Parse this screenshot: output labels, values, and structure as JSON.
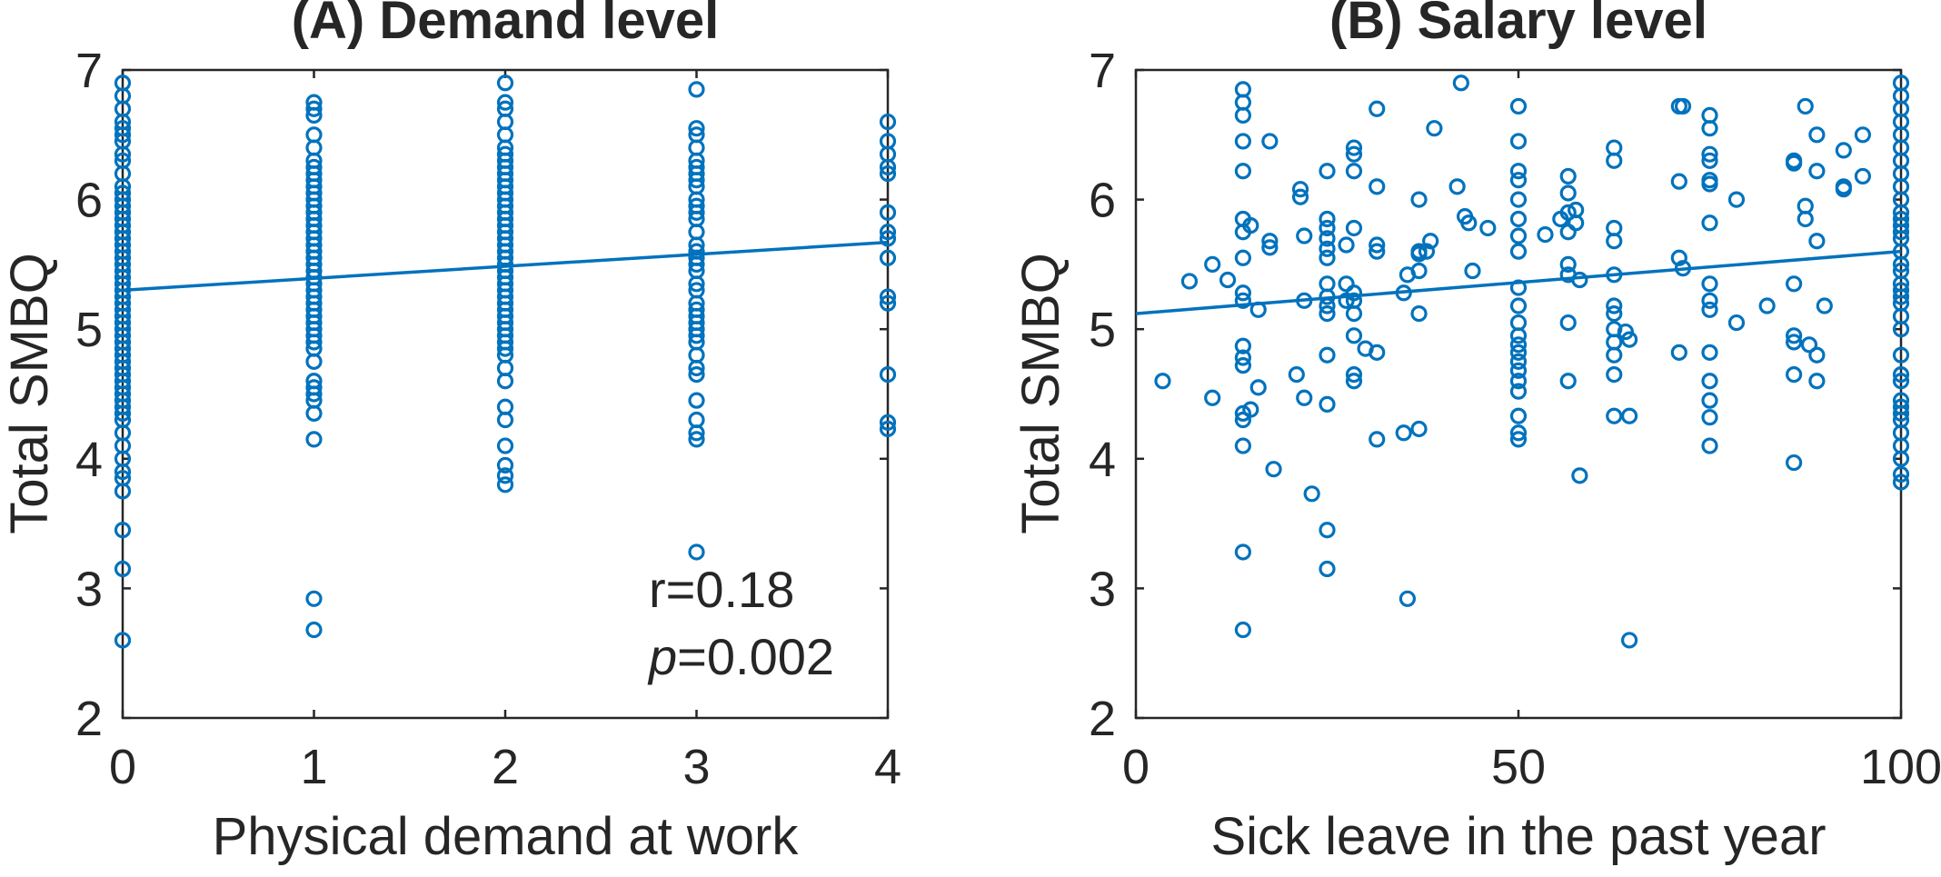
{
  "colors": {
    "marker": "#0072BD",
    "axis": "#262626",
    "background": "#ffffff"
  },
  "chart_data": [
    {
      "type": "scatter",
      "title": "(A) Demand level",
      "xlabel": "Physical demand at work",
      "ylabel": "Total SMBQ",
      "xlim": [
        0,
        4
      ],
      "ylim": [
        2,
        7
      ],
      "xticks": [
        0,
        1,
        2,
        3,
        4
      ],
      "xtick_labels": [
        "0",
        "1",
        "2",
        "3",
        "4"
      ],
      "yticks": [
        2,
        3,
        4,
        5,
        6,
        7
      ],
      "ytick_labels": [
        "2",
        "3",
        "4",
        "5",
        "6",
        "7"
      ],
      "grid": false,
      "annotation": {
        "r_text": "r=0.18",
        "p_italic": "p",
        "p_rest": "=0.002"
      },
      "fit_line": {
        "x": [
          0,
          4
        ],
        "y": [
          5.3,
          5.67
        ]
      },
      "series": [
        {
          "name": "x=0",
          "x": 0,
          "y": [
            6.9,
            6.8,
            6.7,
            6.6,
            6.55,
            6.5,
            6.45,
            6.35,
            6.3,
            6.2,
            6.1,
            6.05,
            6.0,
            5.95,
            5.9,
            5.85,
            5.8,
            5.75,
            5.7,
            5.65,
            5.6,
            5.55,
            5.5,
            5.45,
            5.4,
            5.35,
            5.3,
            5.25,
            5.2,
            5.15,
            5.1,
            5.05,
            5.0,
            4.95,
            4.9,
            4.85,
            4.8,
            4.75,
            4.7,
            4.65,
            4.6,
            4.55,
            4.5,
            4.45,
            4.4,
            4.35,
            4.3,
            4.2,
            4.1,
            4.0,
            3.9,
            3.85,
            3.75,
            3.45,
            3.15,
            2.6
          ]
        },
        {
          "name": "x=1",
          "x": 1,
          "y": [
            6.75,
            6.7,
            6.65,
            6.5,
            6.4,
            6.3,
            6.25,
            6.2,
            6.15,
            6.1,
            6.05,
            6.0,
            5.95,
            5.9,
            5.85,
            5.8,
            5.75,
            5.7,
            5.65,
            5.6,
            5.55,
            5.5,
            5.45,
            5.4,
            5.35,
            5.3,
            5.25,
            5.2,
            5.15,
            5.1,
            5.05,
            5.0,
            4.95,
            4.9,
            4.85,
            4.75,
            4.6,
            4.55,
            4.5,
            4.45,
            4.35,
            4.15,
            2.92,
            2.68
          ]
        },
        {
          "name": "x=2",
          "x": 2,
          "y": [
            6.9,
            6.75,
            6.7,
            6.6,
            6.5,
            6.4,
            6.35,
            6.3,
            6.25,
            6.2,
            6.15,
            6.1,
            6.05,
            6.0,
            5.95,
            5.9,
            5.85,
            5.8,
            5.75,
            5.7,
            5.65,
            5.6,
            5.55,
            5.5,
            5.45,
            5.4,
            5.35,
            5.3,
            5.25,
            5.2,
            5.15,
            5.1,
            5.05,
            5.0,
            4.95,
            4.9,
            4.85,
            4.8,
            4.7,
            4.6,
            4.4,
            4.3,
            4.1,
            3.95,
            3.87,
            3.8
          ]
        },
        {
          "name": "x=3",
          "x": 3,
          "y": [
            6.85,
            6.55,
            6.5,
            6.4,
            6.3,
            6.25,
            6.2,
            6.15,
            6.1,
            6.0,
            5.95,
            5.9,
            5.85,
            5.75,
            5.65,
            5.6,
            5.55,
            5.5,
            5.45,
            5.35,
            5.3,
            5.2,
            5.15,
            5.1,
            5.05,
            5.0,
            4.95,
            4.9,
            4.8,
            4.7,
            4.65,
            4.45,
            4.3,
            4.2,
            4.15,
            3.28
          ]
        },
        {
          "name": "x=4",
          "x": 4,
          "y": [
            6.6,
            6.45,
            6.35,
            6.25,
            6.2,
            5.9,
            5.75,
            5.7,
            5.55,
            5.25,
            5.2,
            4.65,
            4.28,
            4.23
          ]
        }
      ]
    },
    {
      "type": "scatter",
      "title": "(B) Salary level",
      "xlabel": "Sick leave in the past year",
      "ylabel": "Total SMBQ",
      "xlim": [
        0,
        100
      ],
      "ylim": [
        2,
        7
      ],
      "xticks": [
        0,
        50,
        100
      ],
      "xtick_labels": [
        "0",
        "50",
        "100"
      ],
      "yticks": [
        2,
        3,
        4,
        5,
        6,
        7
      ],
      "ytick_labels": [
        "2",
        "3",
        "4",
        "5",
        "6",
        "7"
      ],
      "grid": false,
      "fit_line": {
        "x": [
          0,
          100
        ],
        "y": [
          5.12,
          5.6
        ]
      },
      "points": [
        [
          3.5,
          4.6
        ],
        [
          7,
          5.37
        ],
        [
          10,
          5.5
        ],
        [
          10,
          4.47
        ],
        [
          12,
          5.38
        ],
        [
          14,
          6.85
        ],
        [
          14,
          6.75
        ],
        [
          14,
          6.65
        ],
        [
          14,
          6.45
        ],
        [
          14,
          6.22
        ],
        [
          14,
          5.85
        ],
        [
          14,
          5.75
        ],
        [
          14,
          5.55
        ],
        [
          14,
          5.28
        ],
        [
          14,
          5.22
        ],
        [
          14,
          4.87
        ],
        [
          14,
          4.78
        ],
        [
          14,
          4.72
        ],
        [
          14,
          4.35
        ],
        [
          14,
          4.3
        ],
        [
          14,
          4.1
        ],
        [
          14,
          3.28
        ],
        [
          14,
          2.68
        ],
        [
          15,
          5.8
        ],
        [
          15,
          4.38
        ],
        [
          16,
          5.15
        ],
        [
          16,
          4.55
        ],
        [
          17.5,
          6.45
        ],
        [
          17.5,
          5.68
        ],
        [
          17.5,
          5.63
        ],
        [
          18,
          3.92
        ],
        [
          21,
          4.65
        ],
        [
          21.5,
          6.08
        ],
        [
          21.5,
          6.02
        ],
        [
          22,
          5.72
        ],
        [
          22,
          5.22
        ],
        [
          22,
          4.47
        ],
        [
          23,
          3.73
        ],
        [
          25,
          6.22
        ],
        [
          25,
          5.85
        ],
        [
          25,
          5.78
        ],
        [
          25,
          5.7
        ],
        [
          25,
          5.62
        ],
        [
          25,
          5.55
        ],
        [
          25,
          5.35
        ],
        [
          25,
          5.25
        ],
        [
          25,
          5.18
        ],
        [
          25,
          5.12
        ],
        [
          25,
          4.8
        ],
        [
          25,
          4.42
        ],
        [
          25,
          3.45
        ],
        [
          25,
          3.15
        ],
        [
          27.5,
          5.65
        ],
        [
          27.5,
          5.35
        ],
        [
          27.5,
          5.22
        ],
        [
          28.5,
          6.4
        ],
        [
          28.5,
          6.35
        ],
        [
          28.5,
          6.22
        ],
        [
          28.5,
          5.78
        ],
        [
          28.5,
          5.28
        ],
        [
          28.5,
          5.22
        ],
        [
          28.5,
          5.12
        ],
        [
          28.5,
          4.95
        ],
        [
          28.5,
          4.65
        ],
        [
          28.5,
          4.6
        ],
        [
          30,
          4.85
        ],
        [
          31.5,
          6.7
        ],
        [
          31.5,
          6.1
        ],
        [
          31.5,
          5.65
        ],
        [
          31.5,
          5.6
        ],
        [
          31.5,
          4.82
        ],
        [
          31.5,
          4.15
        ],
        [
          35,
          5.28
        ],
        [
          35,
          4.2
        ],
        [
          35.5,
          5.42
        ],
        [
          35.5,
          2.92
        ],
        [
          37,
          6.0
        ],
        [
          37,
          5.6
        ],
        [
          37,
          5.58
        ],
        [
          37,
          5.45
        ],
        [
          37,
          5.12
        ],
        [
          37,
          4.23
        ],
        [
          38,
          5.6
        ],
        [
          38.5,
          5.68
        ],
        [
          39,
          6.55
        ],
        [
          42,
          6.1
        ],
        [
          42.5,
          6.9
        ],
        [
          43,
          5.87
        ],
        [
          43.5,
          5.82
        ],
        [
          44,
          5.45
        ],
        [
          46,
          5.78
        ],
        [
          50,
          6.72
        ],
        [
          50,
          6.45
        ],
        [
          50,
          6.22
        ],
        [
          50,
          6.15
        ],
        [
          50,
          6.0
        ],
        [
          50,
          5.85
        ],
        [
          50,
          5.72
        ],
        [
          50,
          5.6
        ],
        [
          50,
          5.32
        ],
        [
          50,
          5.18
        ],
        [
          50,
          5.05
        ],
        [
          50,
          4.95
        ],
        [
          50,
          4.88
        ],
        [
          50,
          4.82
        ],
        [
          50,
          4.75
        ],
        [
          50,
          4.68
        ],
        [
          50,
          4.6
        ],
        [
          50,
          4.52
        ],
        [
          50,
          4.33
        ],
        [
          50,
          4.2
        ],
        [
          50,
          4.15
        ],
        [
          53.5,
          5.73
        ],
        [
          55.5,
          5.85
        ],
        [
          56.5,
          6.18
        ],
        [
          56.5,
          6.05
        ],
        [
          56.5,
          5.9
        ],
        [
          56.5,
          5.75
        ],
        [
          56.5,
          5.5
        ],
        [
          56.5,
          5.42
        ],
        [
          56.5,
          5.05
        ],
        [
          56.5,
          4.6
        ],
        [
          57.5,
          5.92
        ],
        [
          57.5,
          5.82
        ],
        [
          58,
          5.38
        ],
        [
          58,
          3.87
        ],
        [
          62.5,
          6.4
        ],
        [
          62.5,
          6.3
        ],
        [
          62.5,
          5.78
        ],
        [
          62.5,
          5.68
        ],
        [
          62.5,
          5.42
        ],
        [
          62.5,
          5.18
        ],
        [
          62.5,
          5.12
        ],
        [
          62.5,
          5.0
        ],
        [
          62.5,
          4.9
        ],
        [
          62.5,
          4.8
        ],
        [
          62.5,
          4.65
        ],
        [
          62.5,
          4.33
        ],
        [
          64,
          4.98
        ],
        [
          64.5,
          4.92
        ],
        [
          64.5,
          4.33
        ],
        [
          64.5,
          2.6
        ],
        [
          71,
          6.72
        ],
        [
          71,
          6.14
        ],
        [
          71,
          5.55
        ],
        [
          71,
          4.82
        ],
        [
          71.5,
          6.72
        ],
        [
          71.5,
          5.47
        ],
        [
          75,
          6.65
        ],
        [
          75,
          6.55
        ],
        [
          75,
          6.35
        ],
        [
          75,
          6.3
        ],
        [
          75,
          6.15
        ],
        [
          75,
          6.12
        ],
        [
          75,
          5.82
        ],
        [
          75,
          5.35
        ],
        [
          75,
          5.22
        ],
        [
          75,
          5.15
        ],
        [
          75,
          4.82
        ],
        [
          75,
          4.6
        ],
        [
          75,
          4.45
        ],
        [
          75,
          4.32
        ],
        [
          75,
          4.1
        ],
        [
          78.5,
          6.0
        ],
        [
          78.5,
          5.05
        ],
        [
          82.5,
          5.18
        ],
        [
          86,
          6.3
        ],
        [
          86,
          6.28
        ],
        [
          86,
          5.35
        ],
        [
          86,
          4.95
        ],
        [
          86,
          4.9
        ],
        [
          86,
          4.65
        ],
        [
          86,
          3.97
        ],
        [
          87.5,
          6.72
        ],
        [
          87.5,
          5.95
        ],
        [
          87.5,
          5.85
        ],
        [
          88,
          4.88
        ],
        [
          89,
          6.5
        ],
        [
          89,
          6.22
        ],
        [
          89,
          5.68
        ],
        [
          89,
          4.8
        ],
        [
          89,
          4.6
        ],
        [
          90,
          5.18
        ],
        [
          92.5,
          6.38
        ],
        [
          92.5,
          6.1
        ],
        [
          92.5,
          6.08
        ],
        [
          95,
          6.5
        ],
        [
          95,
          6.18
        ],
        [
          100,
          6.9
        ],
        [
          100,
          6.8
        ],
        [
          100,
          6.7
        ],
        [
          100,
          6.6
        ],
        [
          100,
          6.5
        ],
        [
          100,
          6.4
        ],
        [
          100,
          6.3
        ],
        [
          100,
          6.2
        ],
        [
          100,
          6.1
        ],
        [
          100,
          6.0
        ],
        [
          100,
          5.9
        ],
        [
          100,
          5.85
        ],
        [
          100,
          5.8
        ],
        [
          100,
          5.75
        ],
        [
          100,
          5.7
        ],
        [
          100,
          5.6
        ],
        [
          100,
          5.5
        ],
        [
          100,
          5.45
        ],
        [
          100,
          5.35
        ],
        [
          100,
          5.3
        ],
        [
          100,
          5.25
        ],
        [
          100,
          5.2
        ],
        [
          100,
          5.1
        ],
        [
          100,
          5.0
        ],
        [
          100,
          4.8
        ],
        [
          100,
          4.65
        ],
        [
          100,
          4.6
        ],
        [
          100,
          4.45
        ],
        [
          100,
          4.4
        ],
        [
          100,
          4.35
        ],
        [
          100,
          4.3
        ],
        [
          100,
          4.2
        ],
        [
          100,
          4.1
        ],
        [
          100,
          4.0
        ],
        [
          100,
          3.88
        ],
        [
          100,
          3.82
        ]
      ]
    }
  ]
}
